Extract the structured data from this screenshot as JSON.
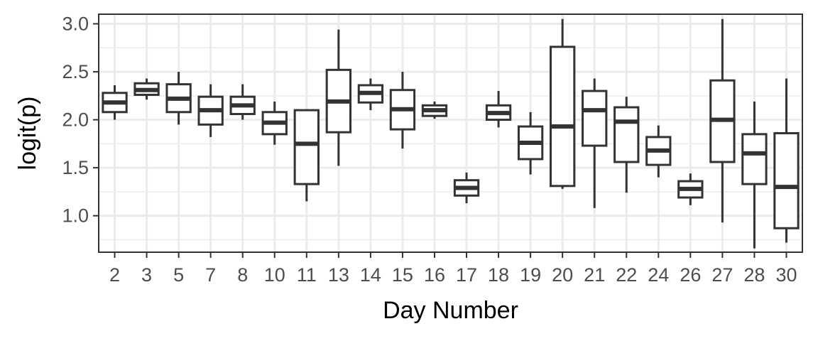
{
  "chart_data": {
    "type": "box",
    "xlabel": "Day Number",
    "ylabel": "logit(p)",
    "ylim": [
      0.62,
      3.1
    ],
    "yticks": [
      1.0,
      1.5,
      2.0,
      2.5,
      3.0
    ],
    "ytick_labels": [
      "1.0",
      "1.5",
      "2.0",
      "2.5",
      "3.0"
    ],
    "grid": true,
    "colors": {
      "box_stroke": "#333333",
      "grid": "#ebebeb",
      "panel_border": "#333333",
      "background": "#ffffff"
    },
    "categories": [
      "2",
      "3",
      "5",
      "7",
      "8",
      "10",
      "11",
      "13",
      "14",
      "15",
      "16",
      "17",
      "18",
      "19",
      "20",
      "21",
      "22",
      "24",
      "26",
      "27",
      "28",
      "30"
    ],
    "boxes": [
      {
        "day": "2",
        "whisker_low": 2.0,
        "q1": 2.08,
        "median": 2.18,
        "q3": 2.28,
        "whisker_high": 2.36
      },
      {
        "day": "3",
        "whisker_low": 2.21,
        "q1": 2.26,
        "median": 2.31,
        "q3": 2.38,
        "whisker_high": 2.43
      },
      {
        "day": "5",
        "whisker_low": 1.95,
        "q1": 2.08,
        "median": 2.22,
        "q3": 2.37,
        "whisker_high": 2.5
      },
      {
        "day": "7",
        "whisker_low": 1.82,
        "q1": 1.95,
        "median": 2.1,
        "q3": 2.24,
        "whisker_high": 2.37
      },
      {
        "day": "8",
        "whisker_low": 2.0,
        "q1": 2.06,
        "median": 2.15,
        "q3": 2.24,
        "whisker_high": 2.37
      },
      {
        "day": "10",
        "whisker_low": 1.74,
        "q1": 1.85,
        "median": 1.97,
        "q3": 2.08,
        "whisker_high": 2.19
      },
      {
        "day": "11",
        "whisker_low": 1.15,
        "q1": 1.33,
        "median": 1.75,
        "q3": 2.1,
        "whisker_high": 2.1
      },
      {
        "day": "13",
        "whisker_low": 1.52,
        "q1": 1.87,
        "median": 2.19,
        "q3": 2.52,
        "whisker_high": 2.94
      },
      {
        "day": "14",
        "whisker_low": 2.1,
        "q1": 2.18,
        "median": 2.28,
        "q3": 2.36,
        "whisker_high": 2.43
      },
      {
        "day": "15",
        "whisker_low": 1.7,
        "q1": 1.9,
        "median": 2.11,
        "q3": 2.31,
        "whisker_high": 2.5
      },
      {
        "day": "16",
        "whisker_low": 2.01,
        "q1": 2.04,
        "median": 2.1,
        "q3": 2.15,
        "whisker_high": 2.19
      },
      {
        "day": "17",
        "whisker_low": 1.13,
        "q1": 1.21,
        "median": 1.29,
        "q3": 1.37,
        "whisker_high": 1.45
      },
      {
        "day": "18",
        "whisker_low": 1.92,
        "q1": 2.0,
        "median": 2.07,
        "q3": 2.15,
        "whisker_high": 2.3
      },
      {
        "day": "19",
        "whisker_low": 1.43,
        "q1": 1.59,
        "median": 1.76,
        "q3": 1.93,
        "whisker_high": 2.08
      },
      {
        "day": "20",
        "whisker_low": 1.28,
        "q1": 1.31,
        "median": 1.93,
        "q3": 2.76,
        "whisker_high": 3.05
      },
      {
        "day": "21",
        "whisker_low": 1.08,
        "q1": 1.73,
        "median": 2.1,
        "q3": 2.3,
        "whisker_high": 2.43
      },
      {
        "day": "22",
        "whisker_low": 1.24,
        "q1": 1.56,
        "median": 1.98,
        "q3": 2.13,
        "whisker_high": 2.24
      },
      {
        "day": "24",
        "whisker_low": 1.4,
        "q1": 1.53,
        "median": 1.68,
        "q3": 1.82,
        "whisker_high": 1.94
      },
      {
        "day": "26",
        "whisker_low": 1.11,
        "q1": 1.19,
        "median": 1.28,
        "q3": 1.36,
        "whisker_high": 1.44
      },
      {
        "day": "27",
        "whisker_low": 0.93,
        "q1": 1.56,
        "median": 2.0,
        "q3": 2.41,
        "whisker_high": 3.05
      },
      {
        "day": "28",
        "whisker_low": 0.66,
        "q1": 1.33,
        "median": 1.65,
        "q3": 1.85,
        "whisker_high": 2.19
      },
      {
        "day": "30",
        "whisker_low": 0.72,
        "q1": 0.87,
        "median": 1.3,
        "q3": 1.86,
        "whisker_high": 2.43
      }
    ]
  }
}
